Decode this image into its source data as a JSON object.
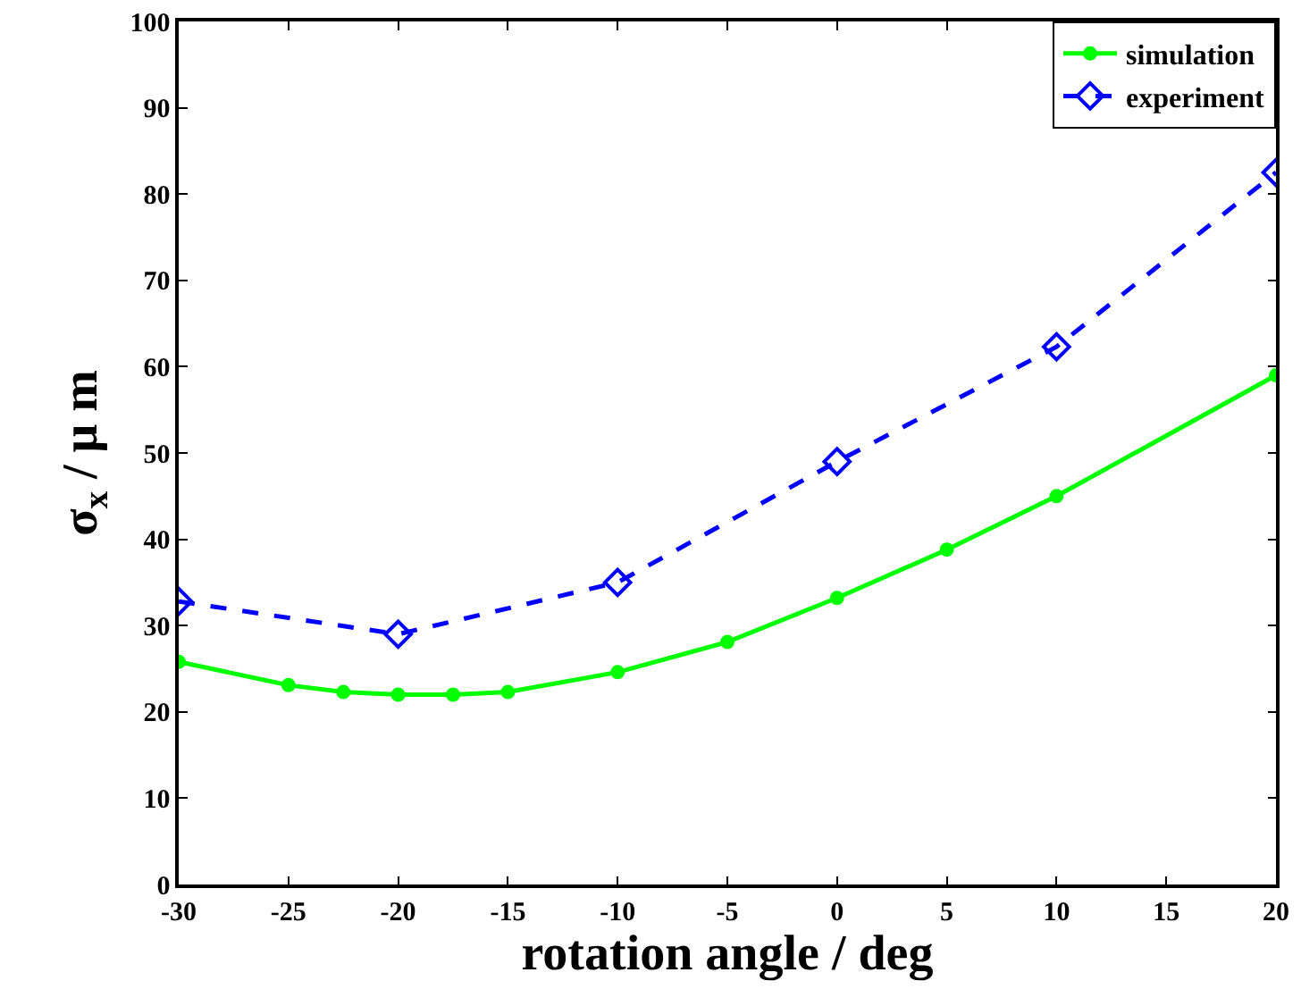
{
  "chart_data": {
    "type": "line",
    "xlabel": "rotation angle / deg",
    "ylabel": "σ$_{x}$ / μ m",
    "xlim": [
      -30,
      20
    ],
    "xticks": [
      -30,
      -25,
      -20,
      -15,
      -10,
      -5,
      0,
      5,
      10,
      15,
      20
    ],
    "ylim": [
      0,
      100
    ],
    "yticks": [
      0,
      10,
      20,
      30,
      40,
      50,
      60,
      70,
      80,
      90,
      100
    ],
    "grid": false,
    "legend": "top right",
    "series": [
      {
        "name": "simulation",
        "color": "#00ff00",
        "marker": "circle",
        "line_style": "solid",
        "x": [
          -30,
          -25,
          -22.5,
          -20,
          -17.5,
          -15,
          -10,
          -5,
          0,
          5,
          10,
          20
        ],
        "values": [
          25.8,
          23.1,
          22.3,
          22,
          22,
          22.3,
          24.6,
          28.1,
          33.2,
          38.8,
          45,
          59
        ]
      },
      {
        "name": "experiment",
        "color": "#0000ff",
        "marker": "diamond",
        "line_style": "dashed",
        "x": [
          -30,
          -20,
          -10,
          0,
          10,
          20
        ],
        "values": [
          32.8,
          29,
          35,
          49,
          62.3,
          82.5
        ]
      }
    ]
  }
}
